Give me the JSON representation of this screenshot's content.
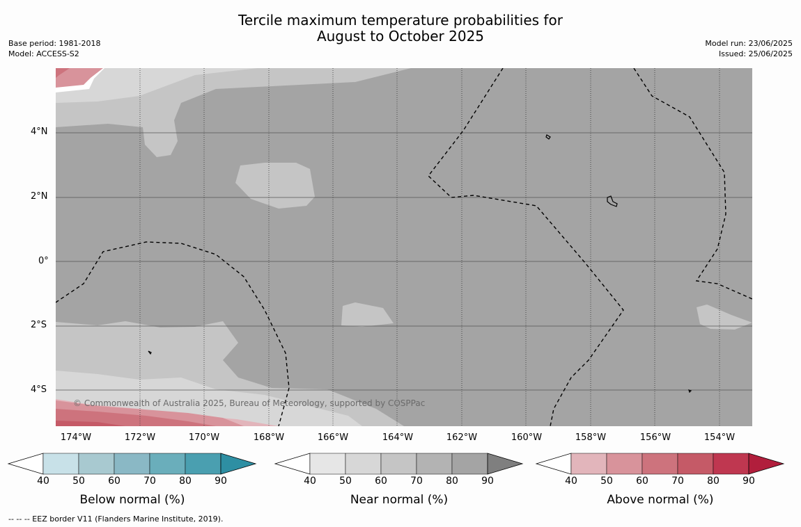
{
  "header": {
    "title_line1": "Tercile maximum temperature probabilities for",
    "title_line2": "August to October 2025",
    "base_period": "Base period: 1981-2018",
    "model": "Model: ACCESS-S2",
    "model_run": "Model run: 23/06/2025",
    "issued": "Issued: 25/06/2025"
  },
  "map": {
    "lat_ticks": [
      "4°N",
      "2°N",
      "0°",
      "2°S",
      "4°S"
    ],
    "lon_ticks": [
      "174°W",
      "172°W",
      "170°W",
      "168°W",
      "166°W",
      "164°W",
      "162°W",
      "160°W",
      "158°W",
      "156°W",
      "154°W"
    ],
    "copyright": "© Commonwealth of Australia 2025, Bureau of Meteorology, supported by COSPPac"
  },
  "colorbars": [
    {
      "title": "Below normal (%)",
      "labels": [
        "40",
        "50",
        "60",
        "70",
        "80",
        "90"
      ],
      "colors": [
        "#ffffff",
        "#c8e1e8",
        "#a8c9d0",
        "#8ab8c5",
        "#6aaebb",
        "#4a9fb0",
        "#2e8fa3"
      ]
    },
    {
      "title": "Near normal (%)",
      "labels": [
        "40",
        "50",
        "60",
        "70",
        "80",
        "90"
      ],
      "colors": [
        "#ffffff",
        "#e6e6e6",
        "#d7d7d7",
        "#c5c5c5",
        "#b3b3b3",
        "#a4a4a4",
        "#7f7f7f"
      ]
    },
    {
      "title": "Above normal (%)",
      "labels": [
        "40",
        "50",
        "60",
        "70",
        "80",
        "90"
      ],
      "colors": [
        "#ffffff",
        "#e2b5bb",
        "#d8939b",
        "#cd737d",
        "#c55a67",
        "#bf3750",
        "#b11e3c"
      ]
    }
  ],
  "footnote": "--  --  -- EEZ border V11 (Flanders Marine Institute, 2019)."
}
